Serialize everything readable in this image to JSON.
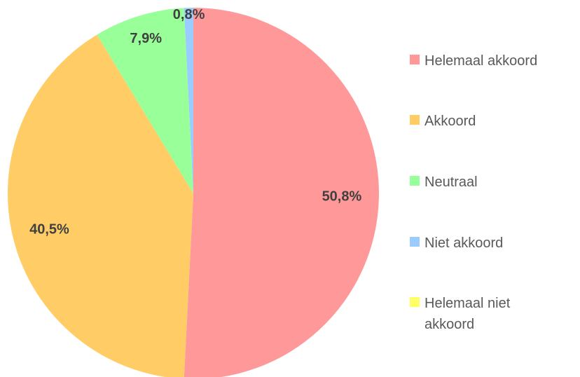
{
  "chart_data": {
    "type": "pie",
    "categories": [
      "Helemaal akkoord",
      "Akkoord",
      "Neutraal",
      "Niet akkoord",
      "Helemaal niet akkoord"
    ],
    "values": [
      50.8,
      40.5,
      7.9,
      0.8,
      0
    ],
    "value_labels": [
      "50,8%",
      "40,5%",
      "7,9%",
      "0,8%",
      null
    ],
    "colors": [
      "#ff9999",
      "#ffcc66",
      "#99ff99",
      "#99ccff",
      "#ffff66"
    ],
    "legend": "right"
  }
}
